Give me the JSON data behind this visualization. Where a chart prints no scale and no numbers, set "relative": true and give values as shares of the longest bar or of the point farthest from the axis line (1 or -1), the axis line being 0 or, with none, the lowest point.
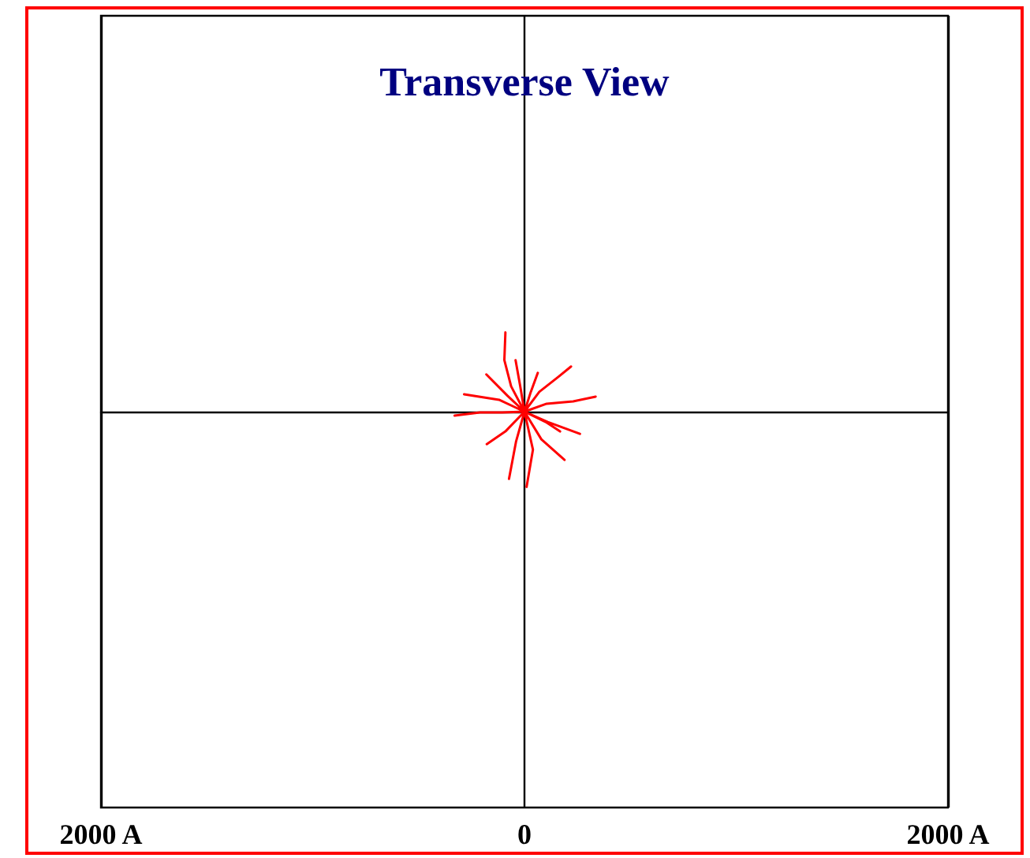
{
  "chart_data": {
    "type": "line",
    "title": "Transverse View",
    "xlim": [
      -2000,
      2000
    ],
    "relative": true,
    "xticks": [
      {
        "value": -2000,
        "label": "2000 A"
      },
      0,
      {
        "value": 2000,
        "label": "2000 A"
      }
    ],
    "tick_labels": "x",
    "grid": "x",
    "marker": "none",
    "line_style": "solid",
    "series": [
      {
        "color": "#ff0000",
        "x": [
          0,
          -63,
          -95,
          -90,
          null,
          0,
          -105,
          -210,
          -330,
          null,
          0,
          -80,
          -180,
          null,
          0,
          -120,
          -285,
          null,
          0,
          -20,
          -42,
          null,
          0,
          70,
          160,
          220,
          null,
          0,
          105,
          230,
          336,
          null,
          0,
          110,
          262,
          null,
          0,
          80,
          189,
          null,
          0,
          40,
          10,
          null,
          0,
          -40,
          -73,
          null,
          0,
          -90,
          -178,
          null,
          0,
          30,
          63,
          null,
          0,
          100,
          168
        ],
        "values": [
          0,
          0.32,
          0.65,
          1.0,
          null,
          0,
          -0.01,
          -0.01,
          -0.05,
          null,
          0,
          0.2,
          0.47,
          null,
          0,
          0.15,
          0.22,
          null,
          0,
          0.32,
          0.65,
          null,
          0,
          0.25,
          0.44,
          0.57,
          null,
          0,
          0.1,
          0.13,
          0.19,
          null,
          0,
          -0.13,
          -0.28,
          null,
          0,
          -0.35,
          -0.61,
          null,
          0,
          -0.48,
          -0.95,
          null,
          0,
          -0.38,
          -0.85,
          null,
          0,
          -0.25,
          -0.41,
          null,
          0,
          0.25,
          0.49,
          null,
          0,
          -0.13,
          -0.25
        ]
      }
    ]
  }
}
